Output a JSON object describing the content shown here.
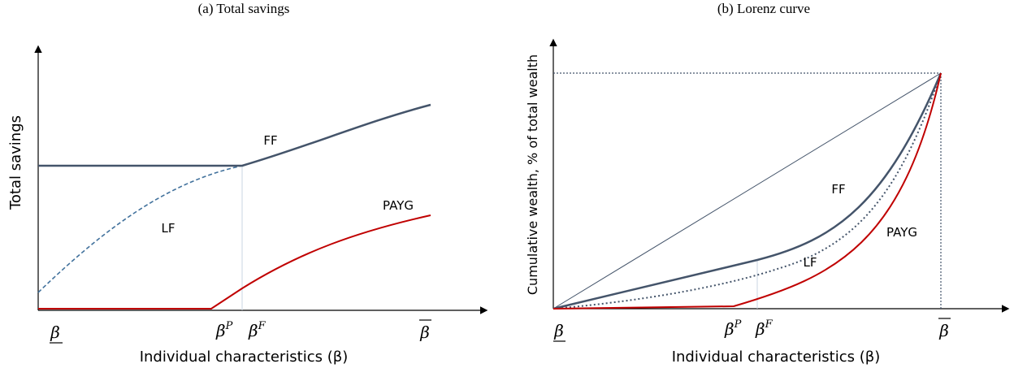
{
  "panels": [
    {
      "title": "(a) Total savings",
      "y_label": "Total savings",
      "x_label": "Individual characteristics (β)",
      "ticks": [
        {
          "base": "β"
        },
        {
          "base": "β",
          "sup": "P"
        },
        {
          "base": "β",
          "sup": "F"
        },
        {
          "base": "β"
        }
      ],
      "curve_labels": [
        "FF",
        "LF",
        "PAYG"
      ]
    },
    {
      "title": "(b) Lorenz curve",
      "y_label": "Cumulative wealth, % of total wealth",
      "x_label": "Individual characteristics (β)",
      "ticks": [
        {
          "base": "β"
        },
        {
          "base": "β",
          "sup": "P"
        },
        {
          "base": "β",
          "sup": "F"
        },
        {
          "base": "β"
        }
      ],
      "curve_labels": [
        "FF",
        "LF",
        "PAYG"
      ]
    }
  ]
}
